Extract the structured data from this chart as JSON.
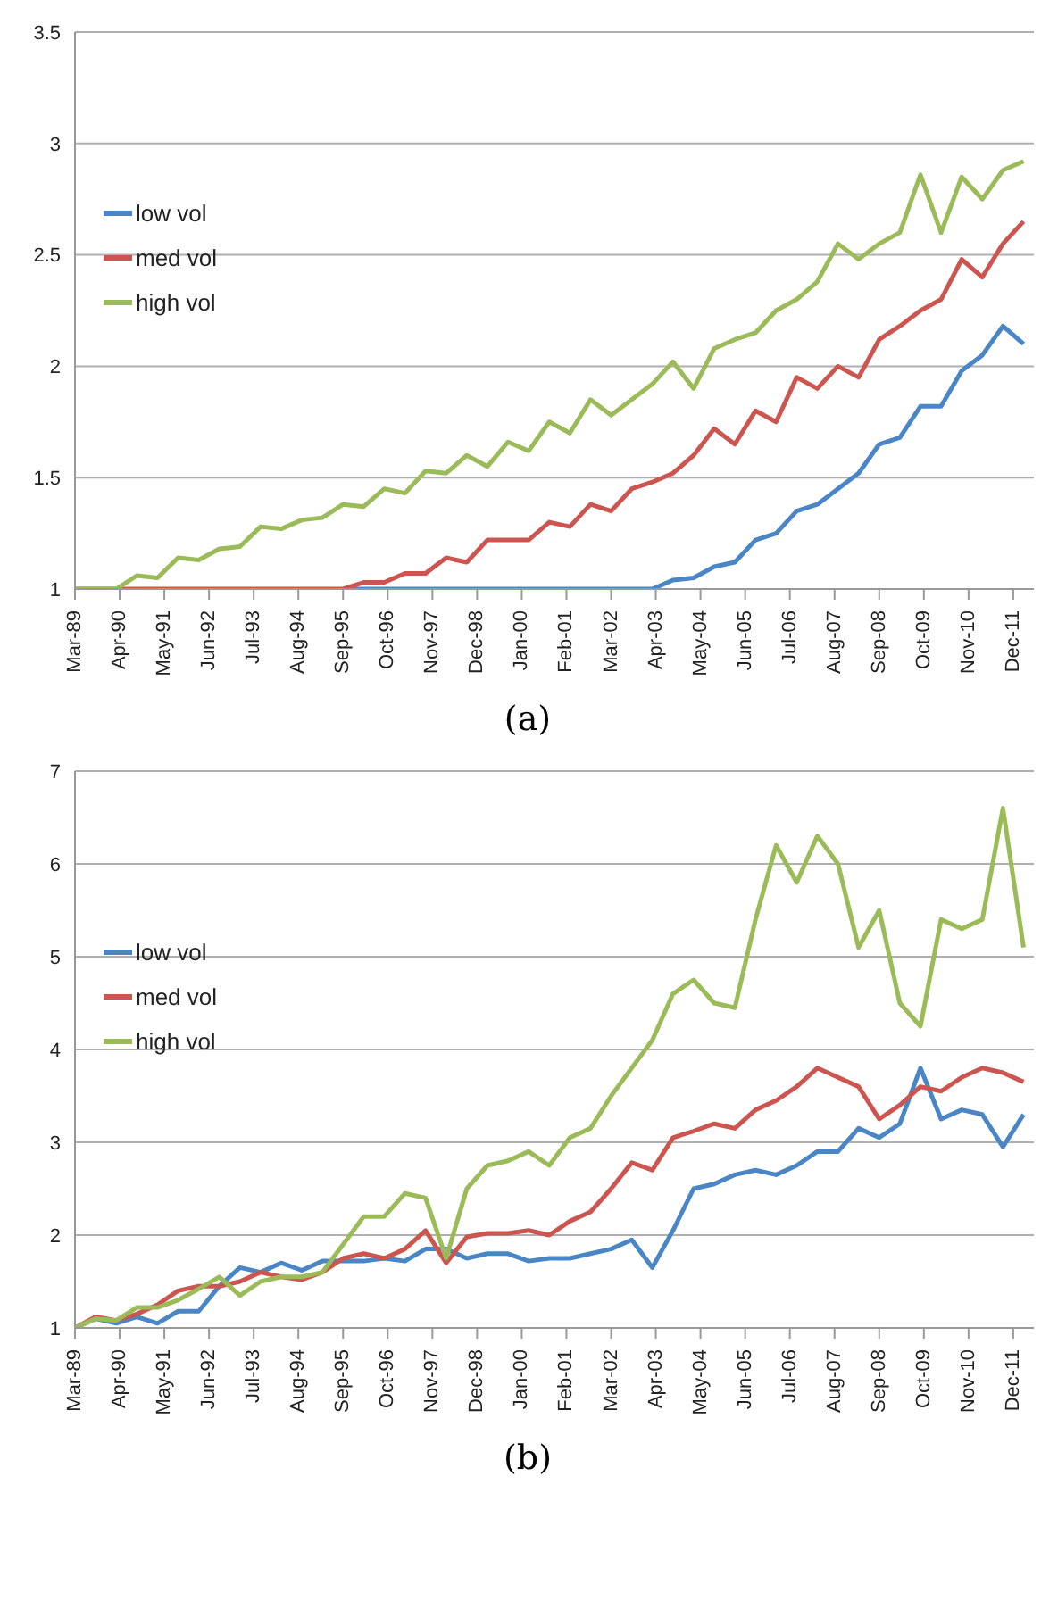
{
  "chart_data": [
    {
      "type": "line",
      "annotations": [
        "(a)"
      ],
      "x": [
        "1989-03",
        "1989-09",
        "1990-03",
        "1990-09",
        "1991-03",
        "1991-09",
        "1992-03",
        "1992-09",
        "1993-03",
        "1993-09",
        "1994-03",
        "1994-09",
        "1995-03",
        "1995-09",
        "1996-03",
        "1996-09",
        "1997-03",
        "1997-09",
        "1998-03",
        "1998-09",
        "1999-03",
        "1999-09",
        "2000-03",
        "2000-09",
        "2001-03",
        "2001-09",
        "2002-03",
        "2002-09",
        "2003-03",
        "2003-09",
        "2004-03",
        "2004-09",
        "2005-03",
        "2005-09",
        "2006-03",
        "2006-09",
        "2007-03",
        "2007-09",
        "2008-03",
        "2008-09",
        "2009-03",
        "2009-09",
        "2010-03",
        "2010-09",
        "2011-03",
        "2011-09",
        "2012-03"
      ],
      "series": [
        {
          "name": "low vol",
          "color": "#4a86c5",
          "values": [
            null,
            null,
            null,
            null,
            null,
            null,
            null,
            null,
            null,
            null,
            null,
            null,
            null,
            1.0,
            1.0,
            1.0,
            1.0,
            1.0,
            1.0,
            1.0,
            1.0,
            1.0,
            1.0,
            1.0,
            1.0,
            1.0,
            1.0,
            1.0,
            1.0,
            1.04,
            1.05,
            1.1,
            1.12,
            1.22,
            1.25,
            1.35,
            1.38,
            1.45,
            1.52,
            1.65,
            1.68,
            1.82,
            1.82,
            1.98,
            2.05,
            2.18,
            2.1
          ]
        },
        {
          "name": "med vol",
          "color": "#cc5550",
          "values": [
            1.0,
            1.0,
            1.0,
            1.0,
            1.0,
            1.0,
            1.0,
            1.0,
            1.0,
            1.0,
            1.0,
            1.0,
            1.0,
            1.0,
            1.03,
            1.03,
            1.07,
            1.07,
            1.14,
            1.12,
            1.22,
            1.22,
            1.22,
            1.3,
            1.28,
            1.38,
            1.35,
            1.45,
            1.48,
            1.52,
            1.6,
            1.72,
            1.65,
            1.8,
            1.75,
            1.95,
            1.9,
            2.0,
            1.95,
            2.12,
            2.18,
            2.25,
            2.3,
            2.48,
            2.4,
            2.55,
            2.65
          ]
        },
        {
          "name": "high vol",
          "color": "#9bbb59",
          "values": [
            1.0,
            1.0,
            1.0,
            1.06,
            1.05,
            1.14,
            1.13,
            1.18,
            1.19,
            1.28,
            1.27,
            1.31,
            1.32,
            1.38,
            1.37,
            1.45,
            1.43,
            1.53,
            1.52,
            1.6,
            1.55,
            1.66,
            1.62,
            1.75,
            1.7,
            1.85,
            1.78,
            1.85,
            1.92,
            2.02,
            1.9,
            2.08,
            2.12,
            2.15,
            2.25,
            2.3,
            2.38,
            2.55,
            2.48,
            2.55,
            2.6,
            2.86,
            2.6,
            2.85,
            2.75,
            2.88,
            2.92
          ]
        }
      ],
      "xlim": [
        "1989-03",
        "2012-06"
      ],
      "xticks": [
        {
          "value": "1989-03",
          "label": "Mar-89"
        },
        {
          "value": "1990-04",
          "label": "Apr-90"
        },
        {
          "value": "1991-05",
          "label": "May-91"
        },
        {
          "value": "1992-06",
          "label": "Jun-92"
        },
        {
          "value": "1993-07",
          "label": "Jul-93"
        },
        {
          "value": "1994-08",
          "label": "Aug-94"
        },
        {
          "value": "1995-09",
          "label": "Sep-95"
        },
        {
          "value": "1996-10",
          "label": "Oct-96"
        },
        {
          "value": "1997-11",
          "label": "Nov-97"
        },
        {
          "value": "1998-12",
          "label": "Dec-98"
        },
        {
          "value": "2000-01",
          "label": "Jan-00"
        },
        {
          "value": "2001-02",
          "label": "Feb-01"
        },
        {
          "value": "2002-03",
          "label": "Mar-02"
        },
        {
          "value": "2003-04",
          "label": "Apr-03"
        },
        {
          "value": "2004-05",
          "label": "May-04"
        },
        {
          "value": "2005-06",
          "label": "Jun-05"
        },
        {
          "value": "2006-07",
          "label": "Jul-06"
        },
        {
          "value": "2007-08",
          "label": "Aug-07"
        },
        {
          "value": "2008-09",
          "label": "Sep-08"
        },
        {
          "value": "2009-10",
          "label": "Oct-09"
        },
        {
          "value": "2010-11",
          "label": "Nov-10"
        },
        {
          "value": "2011-12",
          "label": "Dec-11"
        }
      ],
      "ylim": [
        1,
        3.5
      ],
      "yticks": [
        1,
        1.5,
        2,
        2.5,
        3,
        3.5
      ],
      "grid": "y",
      "legend": "left",
      "marker": "none",
      "line_style": "solid"
    },
    {
      "type": "line",
      "annotations": [
        "(b)"
      ],
      "x": [
        "1989-03",
        "1989-09",
        "1990-03",
        "1990-09",
        "1991-03",
        "1991-09",
        "1992-03",
        "1992-09",
        "1993-03",
        "1993-09",
        "1994-03",
        "1994-09",
        "1995-03",
        "1995-09",
        "1996-03",
        "1996-09",
        "1997-03",
        "1997-09",
        "1998-03",
        "1998-09",
        "1999-03",
        "1999-09",
        "2000-03",
        "2000-09",
        "2001-03",
        "2001-09",
        "2002-03",
        "2002-09",
        "2003-03",
        "2003-09",
        "2004-03",
        "2004-09",
        "2005-03",
        "2005-09",
        "2006-03",
        "2006-09",
        "2007-03",
        "2007-09",
        "2008-03",
        "2008-09",
        "2009-03",
        "2009-09",
        "2010-03",
        "2010-09",
        "2011-03",
        "2011-09",
        "2012-03"
      ],
      "series": [
        {
          "name": "low vol",
          "color": "#4a86c5",
          "values": [
            1.0,
            1.1,
            1.05,
            1.12,
            1.05,
            1.18,
            1.18,
            1.45,
            1.65,
            1.6,
            1.7,
            1.62,
            1.72,
            1.72,
            1.72,
            1.75,
            1.72,
            1.85,
            1.85,
            1.75,
            1.8,
            1.8,
            1.72,
            1.75,
            1.75,
            1.8,
            1.85,
            1.95,
            1.65,
            2.05,
            2.5,
            2.55,
            2.65,
            2.7,
            2.65,
            2.75,
            2.9,
            2.9,
            3.15,
            3.05,
            3.2,
            3.8,
            3.25,
            3.35,
            3.3,
            2.95,
            3.3
          ]
        },
        {
          "name": "med vol",
          "color": "#cc5550",
          "values": [
            1.0,
            1.12,
            1.08,
            1.15,
            1.25,
            1.4,
            1.45,
            1.45,
            1.5,
            1.6,
            1.55,
            1.52,
            1.6,
            1.75,
            1.8,
            1.75,
            1.85,
            2.05,
            1.7,
            1.98,
            2.02,
            2.02,
            2.05,
            2.0,
            2.15,
            2.25,
            2.5,
            2.78,
            2.7,
            3.05,
            3.12,
            3.2,
            3.15,
            3.35,
            3.45,
            3.6,
            3.8,
            3.7,
            3.6,
            3.25,
            3.4,
            3.6,
            3.55,
            3.7,
            3.8,
            3.75,
            3.65
          ]
        },
        {
          "name": "high vol",
          "color": "#9bbb59",
          "values": [
            1.0,
            1.1,
            1.08,
            1.22,
            1.22,
            1.3,
            1.42,
            1.55,
            1.35,
            1.5,
            1.55,
            1.55,
            1.6,
            1.9,
            2.2,
            2.2,
            2.45,
            2.4,
            1.75,
            2.5,
            2.75,
            2.8,
            2.9,
            2.75,
            3.05,
            3.15,
            3.5,
            3.8,
            4.1,
            4.6,
            4.75,
            4.5,
            4.45,
            5.4,
            6.2,
            5.8,
            6.3,
            6.0,
            5.1,
            5.5,
            4.5,
            4.25,
            5.4,
            5.3,
            5.4,
            6.6,
            5.1
          ]
        }
      ],
      "xlim": [
        "1989-03",
        "2012-06"
      ],
      "xticks": [
        {
          "value": "1989-03",
          "label": "Mar-89"
        },
        {
          "value": "1990-04",
          "label": "Apr-90"
        },
        {
          "value": "1991-05",
          "label": "May-91"
        },
        {
          "value": "1992-06",
          "label": "Jun-92"
        },
        {
          "value": "1993-07",
          "label": "Jul-93"
        },
        {
          "value": "1994-08",
          "label": "Aug-94"
        },
        {
          "value": "1995-09",
          "label": "Sep-95"
        },
        {
          "value": "1996-10",
          "label": "Oct-96"
        },
        {
          "value": "1997-11",
          "label": "Nov-97"
        },
        {
          "value": "1998-12",
          "label": "Dec-98"
        },
        {
          "value": "2000-01",
          "label": "Jan-00"
        },
        {
          "value": "2001-02",
          "label": "Feb-01"
        },
        {
          "value": "2002-03",
          "label": "Mar-02"
        },
        {
          "value": "2003-04",
          "label": "Apr-03"
        },
        {
          "value": "2004-05",
          "label": "May-04"
        },
        {
          "value": "2005-06",
          "label": "Jun-05"
        },
        {
          "value": "2006-07",
          "label": "Jul-06"
        },
        {
          "value": "2007-08",
          "label": "Aug-07"
        },
        {
          "value": "2008-09",
          "label": "Sep-08"
        },
        {
          "value": "2009-10",
          "label": "Oct-09"
        },
        {
          "value": "2010-11",
          "label": "Nov-10"
        },
        {
          "value": "2011-12",
          "label": "Dec-11"
        }
      ],
      "ylim": [
        1,
        7
      ],
      "yticks": [
        1,
        2,
        3,
        4,
        5,
        6,
        7
      ],
      "grid": "y",
      "legend": "left",
      "marker": "none",
      "line_style": "solid"
    }
  ]
}
